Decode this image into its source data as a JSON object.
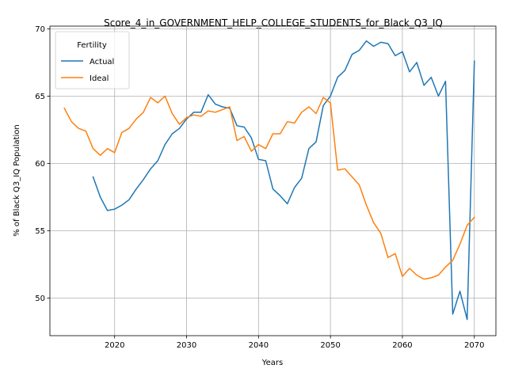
{
  "chart_data": {
    "type": "line",
    "title": "Score_4_in_GOVERNMENT_HELP_COLLEGE_STUDENTS_for_Black_Q3_IQ",
    "xlabel": "Years",
    "ylabel": "% of Black Q3_IQ Population",
    "xlim": [
      2011,
      2073
    ],
    "ylim": [
      47.2,
      70.2
    ],
    "xticks": [
      2020,
      2030,
      2040,
      2050,
      2060,
      2070
    ],
    "yticks": [
      50,
      55,
      60,
      65,
      70
    ],
    "grid": true,
    "legend": {
      "title": "Fertility",
      "placement": "top-left"
    },
    "series": [
      {
        "name": "Actual",
        "color": "#1f77b4",
        "x": [
          2017,
          2018,
          2019,
          2020,
          2021,
          2022,
          2023,
          2024,
          2025,
          2026,
          2027,
          2028,
          2029,
          2030,
          2031,
          2032,
          2033,
          2034,
          2035,
          2036,
          2037,
          2038,
          2039,
          2040,
          2041,
          2042,
          2043,
          2044,
          2045,
          2046,
          2047,
          2048,
          2049,
          2050,
          2051,
          2052,
          2053,
          2054,
          2055,
          2056,
          2057,
          2058,
          2059,
          2060,
          2061,
          2062,
          2063,
          2064,
          2065,
          2066,
          2067,
          2068,
          2069,
          2070
        ],
        "values": [
          59.0,
          57.5,
          56.5,
          56.6,
          56.9,
          57.3,
          58.1,
          58.8,
          59.6,
          60.2,
          61.4,
          62.2,
          62.6,
          63.3,
          63.8,
          63.8,
          65.1,
          64.4,
          64.2,
          64.1,
          62.8,
          62.7,
          61.9,
          60.3,
          60.2,
          58.1,
          57.6,
          57.0,
          58.2,
          58.9,
          61.1,
          61.6,
          64.3,
          65.0,
          66.4,
          66.9,
          68.1,
          68.4,
          69.1,
          68.7,
          69.0,
          68.9,
          68.0,
          68.3,
          66.8,
          67.5,
          65.8,
          66.4,
          65.0,
          66.1,
          48.8,
          50.5,
          48.4,
          67.6
        ]
      },
      {
        "name": "Ideal",
        "color": "#ff7f0e",
        "x": [
          2013,
          2014,
          2015,
          2016,
          2017,
          2018,
          2019,
          2020,
          2021,
          2022,
          2023,
          2024,
          2025,
          2026,
          2027,
          2028,
          2029,
          2030,
          2031,
          2032,
          2033,
          2034,
          2035,
          2036,
          2037,
          2038,
          2039,
          2040,
          2041,
          2042,
          2043,
          2044,
          2045,
          2046,
          2047,
          2048,
          2049,
          2050,
          2051,
          2052,
          2053,
          2054,
          2055,
          2056,
          2057,
          2058,
          2059,
          2060,
          2061,
          2062,
          2063,
          2064,
          2065,
          2066,
          2067,
          2068,
          2069,
          2070
        ],
        "values": [
          64.1,
          63.1,
          62.6,
          62.4,
          61.1,
          60.6,
          61.1,
          60.8,
          62.3,
          62.6,
          63.3,
          63.8,
          64.9,
          64.5,
          65.0,
          63.7,
          62.9,
          63.4,
          63.6,
          63.5,
          63.9,
          63.8,
          64.0,
          64.2,
          61.7,
          62.0,
          60.9,
          61.4,
          61.1,
          62.2,
          62.2,
          63.1,
          63.0,
          63.8,
          64.2,
          63.7,
          64.9,
          64.5,
          59.5,
          59.6,
          59.0,
          58.4,
          56.9,
          55.6,
          54.8,
          53.0,
          53.3,
          51.6,
          52.2,
          51.7,
          51.4,
          51.5,
          51.7,
          52.3,
          52.8,
          54.0,
          55.4,
          56.0
        ]
      }
    ]
  }
}
